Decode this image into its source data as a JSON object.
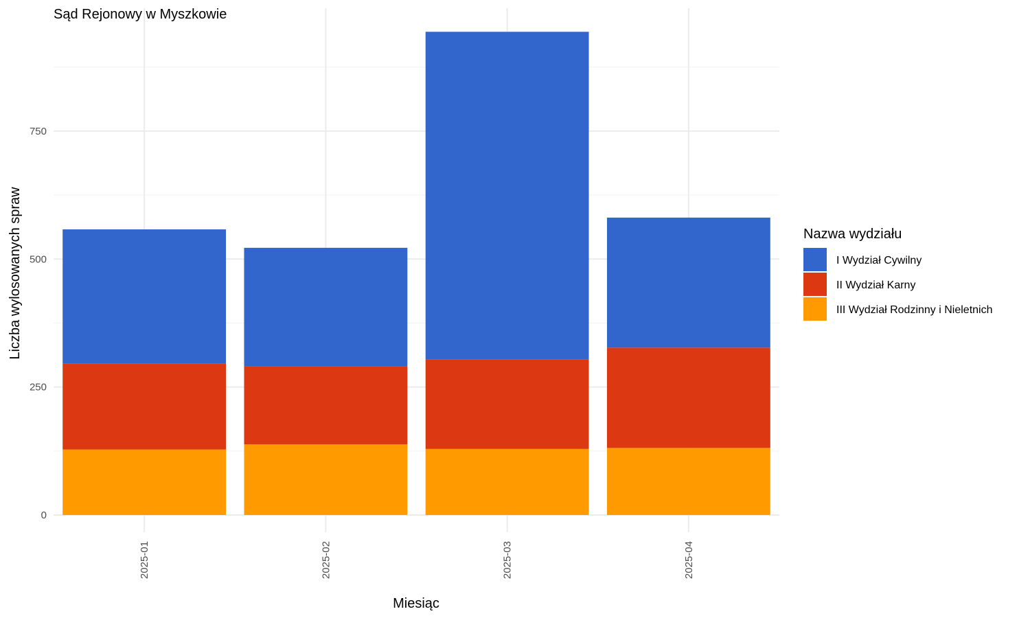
{
  "chart_data": {
    "type": "bar",
    "stacked": true,
    "title": "Sąd Rejonowy w Myszkowie",
    "xlabel": "Miesiąc",
    "ylabel": "Liczba wylosowanych spraw",
    "categories": [
      "2025-01",
      "2025-02",
      "2025-03",
      "2025-04"
    ],
    "ylim": [
      0,
      990
    ],
    "yticks": [
      0,
      250,
      500,
      750
    ],
    "grid": true,
    "legend": {
      "title": "Nazwa wydziału",
      "position": "right"
    },
    "series": [
      {
        "name": "III Wydział Rodzinny i Nieletnich",
        "color": "#ff9a00",
        "values": [
          128,
          138,
          129,
          131
        ]
      },
      {
        "name": "II Wydział Karny",
        "color": "#dc3912",
        "values": [
          168,
          153,
          175,
          196
        ]
      },
      {
        "name": "I Wydział Cywilny",
        "color": "#3366cc",
        "values": [
          262,
          231,
          640,
          254
        ]
      }
    ],
    "legend_order": [
      "I Wydział Cywilny",
      "II Wydział Karny",
      "III Wydział Rodzinny i Nieletnich"
    ]
  }
}
